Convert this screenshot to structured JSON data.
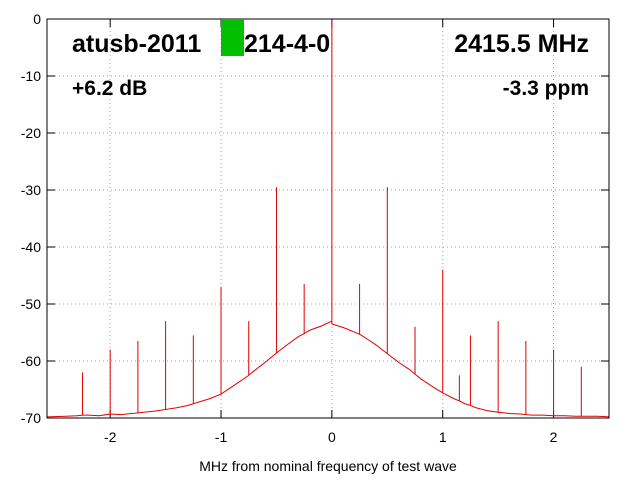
{
  "chart_data": {
    "type": "line",
    "annotations": [
      "atusb-2011",
      "214-4-0",
      "2415.5 MHz",
      "+6.2 dB",
      "-3.3 ppm"
    ],
    "x_label": "MHz from nominal frequency of test wave",
    "x": [
      -2.57,
      -2.4,
      -2.3,
      -2.25,
      -2.25,
      -2.25,
      -2.2,
      -2.1,
      -2.0,
      -2.0,
      -2.0,
      -1.9,
      -1.8,
      -1.75,
      -1.75,
      -1.75,
      -1.7,
      -1.6,
      -1.5,
      -1.5,
      -1.5,
      -1.4,
      -1.3,
      -1.25,
      -1.25,
      -1.25,
      -1.2,
      -1.1,
      -1.0,
      -1.0,
      -1.0,
      -0.9,
      -0.8,
      -0.75,
      -0.75,
      -0.75,
      -0.7,
      -0.6,
      -0.5,
      -0.5,
      -0.5,
      -0.4,
      -0.3,
      -0.25,
      -0.25,
      -0.25,
      -0.2,
      -0.1,
      0,
      0,
      0,
      0.1,
      0.2,
      0.25,
      0.25,
      0.25,
      0.3,
      0.4,
      0.5,
      0.5,
      0.5,
      0.6,
      0.7,
      0.75,
      0.75,
      0.75,
      0.8,
      0.9,
      1.0,
      1.0,
      1.0,
      1.1,
      1.15,
      1.15,
      1.15,
      1.2,
      1.25,
      1.25,
      1.25,
      1.3,
      1.4,
      1.5,
      1.5,
      1.5,
      1.6,
      1.7,
      1.75,
      1.75,
      1.75,
      1.8,
      1.9,
      2.0,
      2.0,
      2.0,
      2.1,
      2.2,
      2.25,
      2.25,
      2.25,
      2.4,
      2.5,
      2.5
    ],
    "series": [
      {
        "color": "#e00000",
        "values": [
          -69.8,
          -69.7,
          -69.6,
          -69.5,
          -62,
          -69.5,
          -69.5,
          -69.6,
          -69.3,
          -58,
          -69.3,
          -69.4,
          -69.2,
          -69.1,
          -56.5,
          -69.1,
          -69.0,
          -68.8,
          -68.5,
          -53,
          -68.5,
          -68.2,
          -67.8,
          -67.5,
          -55.5,
          -67.5,
          -67.2,
          -66.6,
          -65.8,
          -47,
          -65.8,
          -64.5,
          -63.2,
          -62.5,
          -53,
          -62.5,
          -61.7,
          -60.2,
          -58.6,
          -29.5,
          -58.6,
          -57.1,
          -55.7,
          -55.2,
          -46.5,
          -55.2,
          -54.6,
          -53.9,
          -53,
          0,
          -53.5,
          -54.1,
          -54.9,
          -55.3,
          -46.5,
          -55.3,
          -55.9,
          -57.2,
          -58.7,
          -29.5,
          -58.7,
          -60.2,
          -61.5,
          -62.3,
          -54,
          -62.3,
          -63.1,
          -64.4,
          -65.6,
          -44,
          -65.6,
          -66.6,
          -67,
          -62.5,
          -67,
          -67.5,
          -67.8,
          -55.5,
          -67.8,
          -68.2,
          -68.7,
          -69.0,
          -53,
          -69.0,
          -69.2,
          -69.3,
          -69.4,
          -56.5,
          -69.4,
          -69.5,
          -69.5,
          -69.6,
          -58,
          -69.6,
          -69.6,
          -69.7,
          -69.7,
          -61,
          -69.7,
          -69.7,
          -69.8,
          -64
        ]
      }
    ],
    "xlim": [
      -2.57,
      2.5
    ],
    "xticks": [
      -2,
      -1,
      0,
      1,
      2
    ],
    "ylim": [
      -70,
      0
    ],
    "yticks": [
      0,
      -10,
      -20,
      -30,
      -40,
      -50,
      -60,
      -70
    ],
    "grid": true
  }
}
